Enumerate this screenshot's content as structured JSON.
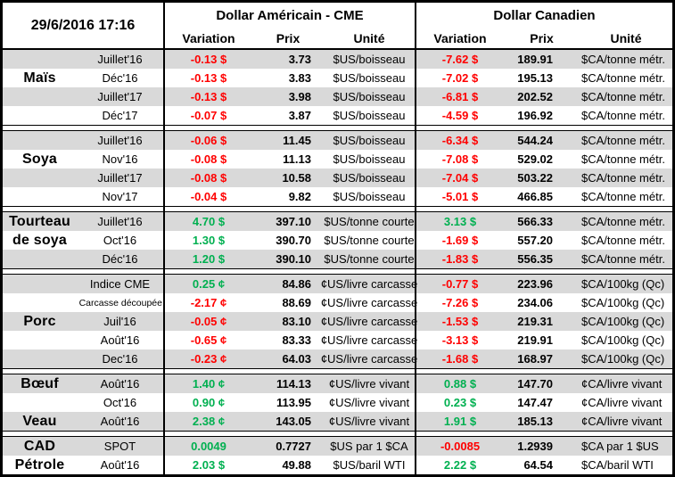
{
  "header": {
    "timestamp": "29/6/2016 17:16",
    "us_title": "Dollar Américain - CME",
    "ca_title": "Dollar Canadien",
    "sub": {
      "variation": "Variation",
      "prix": "Prix",
      "unite": "Unité"
    }
  },
  "colors": {
    "negative": "#FF0000",
    "positive": "#00B050",
    "stripe": "#D9D9D9",
    "border": "#000000"
  },
  "groups": [
    {
      "name": "Maïs",
      "rows": [
        {
          "label": "",
          "month": "Juillet'16",
          "us_var": "-0.13 $",
          "us_prix": "3.73",
          "us_unit": "$US/boisseau",
          "ca_var": "-7.62 $",
          "ca_prix": "189.91",
          "ca_unit": "$CA/tonne métr."
        },
        {
          "label": "Maïs",
          "month": "Déc'16",
          "us_var": "-0.13 $",
          "us_prix": "3.83",
          "us_unit": "$US/boisseau",
          "ca_var": "-7.02 $",
          "ca_prix": "195.13",
          "ca_unit": "$CA/tonne métr."
        },
        {
          "label": "",
          "month": "Juillet'17",
          "us_var": "-0.13 $",
          "us_prix": "3.98",
          "us_unit": "$US/boisseau",
          "ca_var": "-6.81 $",
          "ca_prix": "202.52",
          "ca_unit": "$CA/tonne métr."
        },
        {
          "label": "",
          "month": "Déc'17",
          "us_var": "-0.07 $",
          "us_prix": "3.87",
          "us_unit": "$US/boisseau",
          "ca_var": "-4.59 $",
          "ca_prix": "196.92",
          "ca_unit": "$CA/tonne métr."
        }
      ]
    },
    {
      "name": "Soya",
      "rows": [
        {
          "label": "",
          "month": "Juillet'16",
          "us_var": "-0.06 $",
          "us_prix": "11.45",
          "us_unit": "$US/boisseau",
          "ca_var": "-6.34 $",
          "ca_prix": "544.24",
          "ca_unit": "$CA/tonne métr."
        },
        {
          "label": "Soya",
          "month": "Nov'16",
          "us_var": "-0.08 $",
          "us_prix": "11.13",
          "us_unit": "$US/boisseau",
          "ca_var": "-7.08 $",
          "ca_prix": "529.02",
          "ca_unit": "$CA/tonne métr."
        },
        {
          "label": "",
          "month": "Juillet'17",
          "us_var": "-0.08 $",
          "us_prix": "10.58",
          "us_unit": "$US/boisseau",
          "ca_var": "-7.04 $",
          "ca_prix": "503.22",
          "ca_unit": "$CA/tonne métr."
        },
        {
          "label": "",
          "month": "Nov'17",
          "us_var": "-0.04 $",
          "us_prix": "9.82",
          "us_unit": "$US/boisseau",
          "ca_var": "-5.01 $",
          "ca_prix": "466.85",
          "ca_unit": "$CA/tonne métr."
        }
      ]
    },
    {
      "name": "Tourteau de soya",
      "rows": [
        {
          "label": "Tourteau",
          "month": "Juillet'16",
          "us_var": "4.70 $",
          "us_prix": "397.10",
          "us_unit": "$US/tonne courte",
          "ca_var": "3.13 $",
          "ca_prix": "566.33",
          "ca_unit": "$CA/tonne métr."
        },
        {
          "label": "de soya",
          "month": "Oct'16",
          "us_var": "1.30 $",
          "us_prix": "390.70",
          "us_unit": "$US/tonne courte",
          "ca_var": "-1.69 $",
          "ca_prix": "557.20",
          "ca_unit": "$CA/tonne métr."
        },
        {
          "label": "",
          "month": "Déc'16",
          "us_var": "1.20 $",
          "us_prix": "390.10",
          "us_unit": "$US/tonne courte",
          "ca_var": "-1.83 $",
          "ca_prix": "556.35",
          "ca_unit": "$CA/tonne métr."
        }
      ]
    },
    {
      "name": "Porc",
      "rows": [
        {
          "label": "",
          "month": "Indice CME",
          "us_var": "0.25 ¢",
          "us_prix": "84.86",
          "us_unit": "¢US/livre carcasse",
          "ca_var": "-0.77 $",
          "ca_prix": "223.96",
          "ca_unit": "$CA/100kg (Qc)"
        },
        {
          "label": "",
          "month": "Carcasse découpée",
          "month_small": true,
          "us_var": "-2.17 ¢",
          "us_prix": "88.69",
          "us_unit": "¢US/livre carcasse",
          "ca_var": "-7.26 $",
          "ca_prix": "234.06",
          "ca_unit": "$CA/100kg (Qc)"
        },
        {
          "label": "Porc",
          "month": "Juil'16",
          "us_var": "-0.05 ¢",
          "us_prix": "83.10",
          "us_unit": "¢US/livre carcasse",
          "ca_var": "-1.53 $",
          "ca_prix": "219.31",
          "ca_unit": "$CA/100kg (Qc)"
        },
        {
          "label": "",
          "month": "Août'16",
          "us_var": "-0.65 ¢",
          "us_prix": "83.33",
          "us_unit": "¢US/livre carcasse",
          "ca_var": "-3.13 $",
          "ca_prix": "219.91",
          "ca_unit": "$CA/100kg (Qc)"
        },
        {
          "label": "",
          "month": "Dec'16",
          "us_var": "-0.23 ¢",
          "us_prix": "64.03",
          "us_unit": "¢US/livre carcasse",
          "ca_var": "-1.68 $",
          "ca_prix": "168.97",
          "ca_unit": "$CA/100kg (Qc)"
        }
      ]
    },
    {
      "name": "Bœuf / Veau",
      "rows": [
        {
          "label": "Bœuf",
          "month": "Août'16",
          "us_var": "1.40 ¢",
          "us_prix": "114.13",
          "us_unit": "¢US/livre vivant",
          "ca_var": "0.88 $",
          "ca_prix": "147.70",
          "ca_unit": "¢CA/livre vivant"
        },
        {
          "label": "",
          "month": "Oct'16",
          "us_var": "0.90 ¢",
          "us_prix": "113.95",
          "us_unit": "¢US/livre vivant",
          "ca_var": "0.23 $",
          "ca_prix": "147.47",
          "ca_unit": "¢CA/livre vivant"
        },
        {
          "label": "Veau",
          "month": "Août'16",
          "us_var": "2.38 ¢",
          "us_prix": "143.05",
          "us_unit": "¢US/livre vivant",
          "ca_var": "1.91 $",
          "ca_prix": "185.13",
          "ca_unit": "¢CA/livre vivant"
        }
      ]
    },
    {
      "name": "CAD / Pétrole",
      "rows": [
        {
          "label": "CAD",
          "month": "SPOT",
          "us_var": "0.0049",
          "us_prix": "0.7727",
          "us_unit": "$US par 1 $CA",
          "ca_var": "-0.0085",
          "ca_prix": "1.2939",
          "ca_unit": "$CA par 1 $US"
        },
        {
          "label": "Pétrole",
          "month": "Août'16",
          "us_var": "2.03 $",
          "us_prix": "49.88",
          "us_unit": "$US/baril WTI",
          "ca_var": "2.22 $",
          "ca_prix": "64.54",
          "ca_unit": "$CA/baril WTI"
        }
      ]
    }
  ]
}
